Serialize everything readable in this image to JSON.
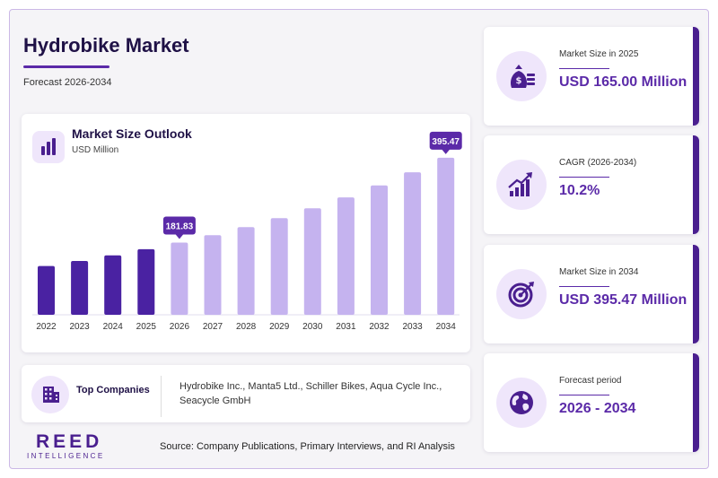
{
  "header": {
    "title": "Hydrobike Market",
    "subtitle": "Forecast 2026-2034"
  },
  "chart_card": {
    "title": "Market Size Outlook",
    "unit": "USD Million",
    "icon": "bar-chart-icon"
  },
  "chart_data": {
    "type": "bar",
    "title": "Market Size Outlook",
    "ylabel": "USD Million",
    "categories": [
      "2022",
      "2023",
      "2024",
      "2025",
      "2026",
      "2027",
      "2028",
      "2029",
      "2030",
      "2031",
      "2032",
      "2033",
      "2034"
    ],
    "values": [
      122.9,
      135.4,
      149.7,
      165.0,
      181.83,
      200.4,
      220.8,
      243.3,
      268.1,
      295.5,
      325.6,
      358.8,
      395.47
    ],
    "ylim": [
      0,
      420
    ],
    "grid": false,
    "historical_color": "#4a22a2",
    "forecast_color": "#c5b3ef",
    "callout_color": "#5b2aa8",
    "callouts": [
      {
        "category": "2026",
        "label": "181.83"
      },
      {
        "category": "2034",
        "label": "395.47"
      }
    ]
  },
  "companies": {
    "label": "Top Companies",
    "text": "Hydrobike Inc., Manta5 Ltd., Schiller Bikes, Aqua Cycle Inc., Seacycle GmbH",
    "icon": "building-icon"
  },
  "stats": [
    {
      "label": "Market Size in 2025",
      "value": "USD 165.00 Million",
      "icon": "money-bag-icon"
    },
    {
      "label": "CAGR (2026-2034)",
      "value": "10.2%",
      "icon": "growth-chart-icon"
    },
    {
      "label": "Market Size in 2034",
      "value": "USD 395.47 Million",
      "icon": "target-icon"
    },
    {
      "label": "Forecast period",
      "value": "2026 - 2034",
      "icon": "globe-icon"
    }
  ],
  "footer": {
    "logo_main": "REED",
    "logo_sub": "INTELLIGENCE",
    "source": "Source: Company Publications, Primary Interviews, and RI Analysis"
  },
  "colors": {
    "brand": "#4a1f8f",
    "accent": "#5b2aa8",
    "icon_bg": "#efe6fb"
  }
}
